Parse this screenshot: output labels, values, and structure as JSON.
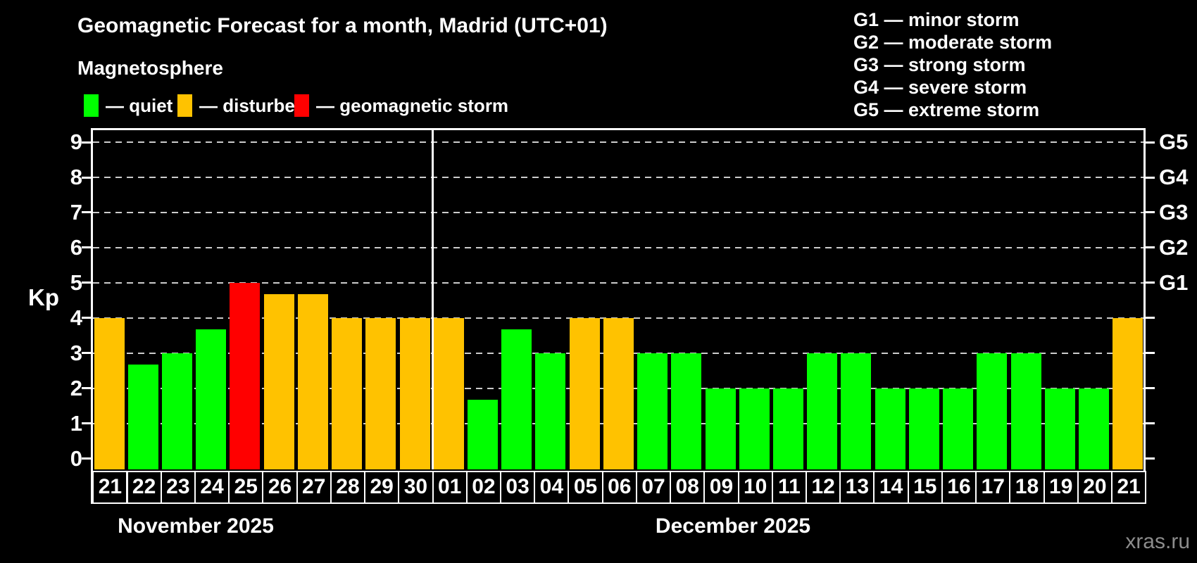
{
  "title": "Geomagnetic Forecast for a month, Madrid (UTC+01)",
  "subtitle": "Magnetosphere",
  "watermark": "xras.ru",
  "legend": [
    {
      "label": "— quiet",
      "status": "quiet"
    },
    {
      "label": "— disturbed",
      "status": "disturbed"
    },
    {
      "label": "— geomagnetic storm",
      "status": "storm"
    }
  ],
  "g_scale_legend": [
    "G1 — minor storm",
    "G2 — moderate storm",
    "G3 — strong storm",
    "G4 — severe storm",
    "G5 — extreme storm"
  ],
  "chart_data": {
    "type": "bar",
    "title": "Geomagnetic Forecast for a month, Madrid (UTC+01)",
    "ylabel": "Kp",
    "yticks": [
      0,
      1,
      2,
      3,
      4,
      5,
      6,
      7,
      8,
      9
    ],
    "ylim": [
      -0.3,
      9.4
    ],
    "grid": "horizontal-dashed",
    "right_axis_labels": [
      {
        "label": "G1",
        "kp": 5
      },
      {
        "label": "G2",
        "kp": 6
      },
      {
        "label": "G3",
        "kp": 7
      },
      {
        "label": "G4",
        "kp": 8
      },
      {
        "label": "G5",
        "kp": 9
      }
    ],
    "categories": [
      "21",
      "22",
      "23",
      "24",
      "25",
      "26",
      "27",
      "28",
      "29",
      "30",
      "01",
      "02",
      "03",
      "04",
      "05",
      "06",
      "07",
      "08",
      "09",
      "10",
      "11",
      "12",
      "13",
      "14",
      "15",
      "16",
      "17",
      "18",
      "19",
      "20",
      "21"
    ],
    "values": [
      4,
      2.67,
      3,
      3.67,
      5,
      4.67,
      4.67,
      4,
      4,
      4,
      4,
      1.67,
      3.67,
      3,
      4,
      4,
      3,
      3,
      2,
      2,
      2,
      3,
      3,
      2,
      2,
      2,
      3,
      3,
      2,
      2,
      4
    ],
    "statuses": [
      "disturbed",
      "quiet",
      "quiet",
      "quiet",
      "storm",
      "disturbed",
      "disturbed",
      "disturbed",
      "disturbed",
      "disturbed",
      "disturbed",
      "quiet",
      "quiet",
      "quiet",
      "disturbed",
      "disturbed",
      "quiet",
      "quiet",
      "quiet",
      "quiet",
      "quiet",
      "quiet",
      "quiet",
      "quiet",
      "quiet",
      "quiet",
      "quiet",
      "quiet",
      "quiet",
      "quiet",
      "disturbed"
    ],
    "months": [
      {
        "label": "November 2025",
        "start_index": 0,
        "end_index": 9
      },
      {
        "label": "December 2025",
        "start_index": 10,
        "end_index": 30
      }
    ],
    "colors": {
      "quiet": "#00ff00",
      "disturbed": "#ffc200",
      "storm": "#ff0000"
    }
  }
}
